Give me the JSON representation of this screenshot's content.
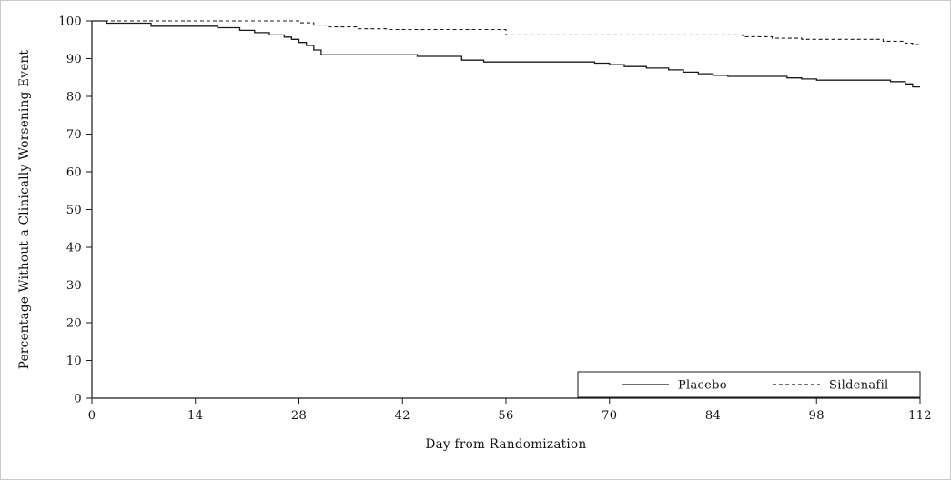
{
  "chart_data": {
    "type": "line",
    "subtype": "kaplan-meier-step",
    "title": "",
    "xlabel": "Day from Randomization",
    "ylabel": "Percentage Without a Clinically Worsening Event",
    "xlim": [
      0,
      112
    ],
    "ylim": [
      0,
      100
    ],
    "x_ticks": [
      0,
      14,
      28,
      42,
      56,
      70,
      84,
      98,
      112
    ],
    "y_ticks": [
      0,
      10,
      20,
      30,
      40,
      50,
      60,
      70,
      80,
      90,
      100
    ],
    "grid": false,
    "legend_position": "inside-bottom-right",
    "axis_color": "#1a1a1a",
    "line_color": "#1a1a1a",
    "background_color": "#ffffff",
    "series": [
      {
        "name": "Placebo",
        "style": "solid",
        "points": [
          [
            0,
            100
          ],
          [
            2,
            99.4
          ],
          [
            8,
            98.6
          ],
          [
            17,
            98.2
          ],
          [
            20,
            97.5
          ],
          [
            22,
            96.9
          ],
          [
            24,
            96.3
          ],
          [
            26,
            95.7
          ],
          [
            27,
            95.1
          ],
          [
            28,
            94.3
          ],
          [
            29,
            93.5
          ],
          [
            30,
            92.3
          ],
          [
            31,
            91.0
          ],
          [
            44,
            90.6
          ],
          [
            50,
            89.6
          ],
          [
            53,
            89.1
          ],
          [
            68,
            88.8
          ],
          [
            70,
            88.4
          ],
          [
            72,
            87.9
          ],
          [
            75,
            87.5
          ],
          [
            78,
            87.0
          ],
          [
            80,
            86.4
          ],
          [
            82,
            86.0
          ],
          [
            84,
            85.6
          ],
          [
            86,
            85.3
          ],
          [
            94,
            84.9
          ],
          [
            96,
            84.6
          ],
          [
            98,
            84.3
          ],
          [
            108,
            83.9
          ],
          [
            110,
            83.3
          ],
          [
            111,
            82.5
          ]
        ]
      },
      {
        "name": "Sildenafil",
        "style": "dashed",
        "points": [
          [
            0,
            100
          ],
          [
            28,
            99.5
          ],
          [
            30,
            98.9
          ],
          [
            32,
            98.4
          ],
          [
            36,
            97.9
          ],
          [
            40,
            97.7
          ],
          [
            56,
            96.3
          ],
          [
            88,
            95.8
          ],
          [
            92,
            95.4
          ],
          [
            96,
            95.1
          ],
          [
            107,
            94.6
          ],
          [
            110,
            94.1
          ],
          [
            111,
            93.7
          ]
        ]
      }
    ]
  }
}
